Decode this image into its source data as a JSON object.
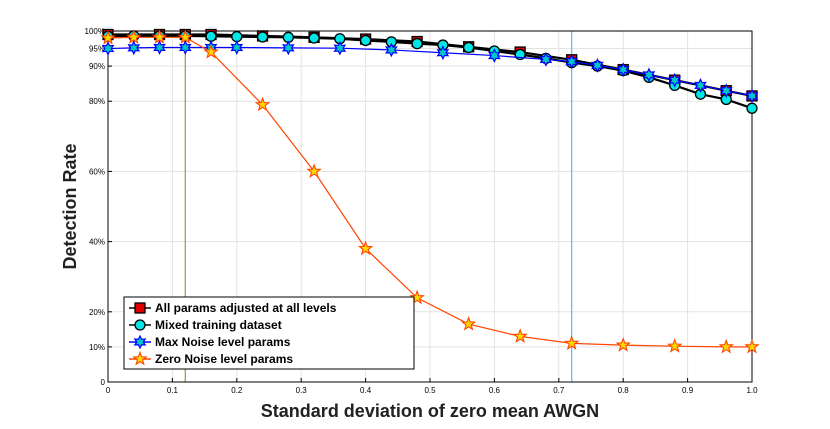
{
  "chart_data": {
    "type": "line",
    "title": "",
    "xlabel": "Standard deviation of zero mean AWGN",
    "ylabel": "Detection Rate",
    "xlim": [
      0,
      1.0
    ],
    "ylim": [
      0,
      100
    ],
    "grid": true,
    "legend_position": "bottom-left",
    "x_ticks": [
      {
        "value": 0,
        "label": "0"
      },
      {
        "value": 0.1,
        "label": "0.1"
      },
      {
        "value": 0.2,
        "label": "0.2"
      },
      {
        "value": 0.3,
        "label": "0.3"
      },
      {
        "value": 0.4,
        "label": "0.4"
      },
      {
        "value": 0.5,
        "label": "0.5"
      },
      {
        "value": 0.6,
        "label": "0.6"
      },
      {
        "value": 0.7,
        "label": "0.7"
      },
      {
        "value": 0.8,
        "label": "0.8"
      },
      {
        "value": 0.9,
        "label": "0.9"
      },
      {
        "value": 1.0,
        "label": "1.0"
      }
    ],
    "y_ticks": [
      {
        "value": 0,
        "label": "0"
      },
      {
        "value": 10,
        "label": "10%"
      },
      {
        "value": 20,
        "label": "20%"
      },
      {
        "value": 40,
        "label": "40%"
      },
      {
        "value": 60,
        "label": "60%"
      },
      {
        "value": 80,
        "label": "80%"
      },
      {
        "value": 90,
        "label": "90%"
      },
      {
        "value": 95,
        "label": "95%"
      },
      {
        "value": 100,
        "label": "100%"
      }
    ],
    "reference_lines": [
      {
        "axis": "x",
        "value": 0.12,
        "color": "#77ac30"
      },
      {
        "axis": "x",
        "value": 0.72,
        "color": "#4dbeee"
      }
    ],
    "series": [
      {
        "name": "All params adjusted at all levels",
        "line_color": "#000000",
        "marker": "square",
        "marker_color": "#e00000",
        "x": [
          0,
          0.08,
          0.12,
          0.16,
          0.24,
          0.32,
          0.4,
          0.48,
          0.56,
          0.64,
          0.72,
          0.8,
          0.88,
          0.96,
          1.0
        ],
        "values": [
          99,
          99,
          99,
          99,
          98.6,
          98.2,
          97.7,
          97,
          95.5,
          94,
          91.8,
          89,
          86,
          83,
          81.5
        ]
      },
      {
        "name": "Mixed training dataset",
        "line_color": "#000000",
        "marker": "circle",
        "marker_color": "#00e5e5",
        "x": [
          0,
          0.04,
          0.08,
          0.12,
          0.16,
          0.2,
          0.24,
          0.28,
          0.32,
          0.36,
          0.4,
          0.44,
          0.48,
          0.52,
          0.56,
          0.6,
          0.64,
          0.68,
          0.72,
          0.76,
          0.8,
          0.84,
          0.88,
          0.92,
          0.96,
          1.0
        ],
        "values": [
          98.5,
          98.6,
          98.6,
          98.6,
          98.5,
          98.4,
          98.3,
          98.2,
          98,
          97.8,
          97.3,
          96.9,
          96.4,
          96,
          95.3,
          94.3,
          93.3,
          92.2,
          91,
          90,
          88.7,
          86.8,
          84.5,
          82,
          80.5,
          78
        ]
      },
      {
        "name": "Max Noise level params",
        "line_color": "#0000ff",
        "marker": "hexagram",
        "marker_color": "#00c8c8",
        "x": [
          0,
          0.04,
          0.08,
          0.12,
          0.16,
          0.2,
          0.28,
          0.36,
          0.44,
          0.52,
          0.6,
          0.68,
          0.72,
          0.76,
          0.8,
          0.84,
          0.88,
          0.92,
          0.96,
          1.0
        ],
        "values": [
          95,
          95.2,
          95.3,
          95.3,
          95.3,
          95.3,
          95.2,
          95.1,
          94.6,
          93.8,
          93,
          91.9,
          91.3,
          90.2,
          89,
          87.5,
          86,
          84.5,
          83,
          81.5
        ]
      },
      {
        "name": "Zero Noise level params",
        "line_color": "#ff4500",
        "marker": "pentagram",
        "marker_color": "#ffd700",
        "x": [
          0,
          0.04,
          0.08,
          0.12,
          0.16,
          0.24,
          0.32,
          0.4,
          0.48,
          0.56,
          0.64,
          0.72,
          0.8,
          0.88,
          0.96,
          1.0
        ],
        "values": [
          98,
          98.2,
          98.2,
          98.2,
          94,
          79,
          60,
          38,
          24,
          16.5,
          13,
          11,
          10.5,
          10.2,
          10,
          10
        ]
      }
    ]
  }
}
